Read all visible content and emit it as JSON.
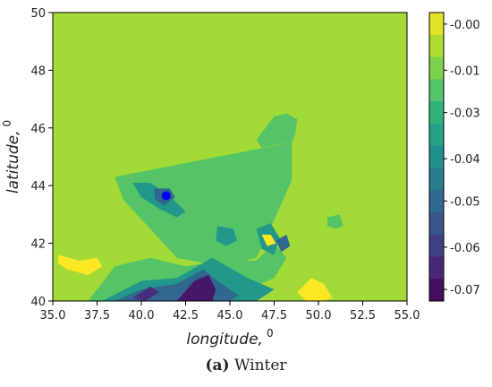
{
  "chart_data": {
    "type": "heatmap",
    "title": "",
    "xlabel": "longitude,",
    "xlabel_superscript": "0",
    "ylabel": "latitude,",
    "ylabel_superscript": "0",
    "xlim": [
      35.0,
      55.0
    ],
    "ylim": [
      40,
      50
    ],
    "x_ticks": [
      "35.0",
      "37.5",
      "40.0",
      "42.5",
      "45.0",
      "47.5",
      "50.0",
      "52.5",
      "55.0"
    ],
    "y_ticks": [
      "40",
      "42",
      "44",
      "46",
      "48",
      "50"
    ],
    "colorbar": {
      "colormap": "viridis",
      "range": [
        -0.075,
        0.0
      ],
      "ticks": [
        "-0.00",
        "-0.01",
        "-0.03",
        "-0.04",
        "-0.05",
        "-0.06",
        "-0.07"
      ],
      "tick_values": [
        -0.003,
        -0.015,
        -0.026,
        -0.038,
        -0.049,
        -0.061,
        -0.072
      ]
    },
    "background_value": -0.01,
    "marker": {
      "lon": 41.4,
      "lat": 43.65,
      "color": "#0000ff"
    },
    "field_regions": [
      {
        "lon": [
          38.5,
          48.5,
          48.5,
          47.5,
          46.5,
          44.5,
          42,
          40.5,
          39
        ],
        "lat": [
          44.3,
          45.5,
          44.2,
          42.8,
          41.5,
          41.2,
          41.5,
          42.5,
          43.5
        ],
        "value": -0.02
      },
      {
        "lon": [
          37,
          38.5,
          40.5,
          42.5,
          44.5,
          46.5,
          47.5,
          48.2,
          47.5,
          46,
          44,
          42,
          40,
          38.5,
          37
        ],
        "lat": [
          40,
          41.2,
          41.5,
          41.2,
          41.4,
          41.4,
          42,
          41.5,
          40.8,
          40.4,
          40,
          40,
          40,
          40,
          40
        ],
        "value": -0.02
      },
      {
        "lon": [
          46.5,
          47.5,
          48.2,
          48.8,
          48.7,
          48.5,
          47.5,
          46.8
        ],
        "lat": [
          45.6,
          46.4,
          46.5,
          46.3,
          45.8,
          45.5,
          45.4,
          45.3
        ],
        "value": -0.02
      },
      {
        "lon": [
          50.5,
          51.2,
          51.4,
          51,
          50.5
        ],
        "lat": [
          42.9,
          43.0,
          42.6,
          42.5,
          42.6
        ],
        "value": -0.02
      },
      {
        "lon": [
          39.5,
          40.5,
          41.5,
          42.5,
          42,
          41,
          40
        ],
        "lat": [
          44.1,
          44.1,
          43.7,
          43.1,
          42.9,
          43.2,
          43.6
        ],
        "value": -0.035
      },
      {
        "lon": [
          37.8,
          40,
          42,
          44,
          46,
          47.5,
          46.5,
          44.5,
          42,
          40,
          38.5
        ],
        "lat": [
          40,
          40.7,
          40.8,
          41.5,
          40.8,
          40.4,
          40,
          40,
          40,
          40,
          40
        ],
        "value": -0.035
      },
      {
        "lon": [
          46.5,
          47.3,
          47.8,
          47.5,
          46.8
        ],
        "lat": [
          42.5,
          42.7,
          42.2,
          41.6,
          41.8
        ],
        "value": -0.035
      },
      {
        "lon": [
          44.3,
          45.2,
          45.4,
          44.8,
          44.2
        ],
        "lat": [
          42.6,
          42.5,
          42.1,
          41.9,
          42.1
        ],
        "value": -0.035
      },
      {
        "lon": [
          40.7,
          41.6,
          41.9,
          41.3,
          40.8
        ],
        "lat": [
          43.9,
          43.9,
          43.6,
          43.3,
          43.5
        ],
        "value": -0.05
      },
      {
        "lon": [
          38.5,
          40,
          42,
          43.5,
          44.5,
          45.5,
          45,
          43.5,
          42,
          40,
          38.5
        ],
        "lat": [
          40,
          40.4,
          40.6,
          41.1,
          40.6,
          40.2,
          40,
          40,
          40,
          40,
          40
        ],
        "value": -0.05
      },
      {
        "lon": [
          39.5,
          40.5,
          41,
          40.2
        ],
        "lat": [
          40.1,
          40.5,
          40.3,
          40
        ],
        "value": -0.065
      },
      {
        "lon": [
          42,
          43,
          43.8,
          44.2,
          44,
          43.2,
          42.2
        ],
        "lat": [
          40,
          40.7,
          40.9,
          40.4,
          40,
          40,
          40
        ],
        "value": -0.07
      },
      {
        "lon": [
          47.6,
          48.2,
          48.4,
          47.9
        ],
        "lat": [
          42.1,
          42.3,
          41.9,
          41.7
        ],
        "value": -0.05
      },
      {
        "lon": [
          35.3,
          36.5,
          37.5,
          37.8,
          37,
          35.8,
          35.3
        ],
        "lat": [
          41.6,
          41.4,
          41.5,
          41.2,
          40.9,
          41.1,
          41.3
        ],
        "value": 0.0
      },
      {
        "lon": [
          48.8,
          49.6,
          50.3,
          50.8,
          50.2,
          49.3
        ],
        "lat": [
          40.3,
          40.8,
          40.6,
          40.1,
          40,
          40
        ],
        "value": 0.0
      },
      {
        "lon": [
          46.8,
          47.3,
          47.6,
          47.1
        ],
        "lat": [
          42.3,
          42.3,
          42.0,
          41.9
        ],
        "value": 0.0
      }
    ]
  },
  "caption": {
    "label": "(a)",
    "text": "Winter"
  }
}
